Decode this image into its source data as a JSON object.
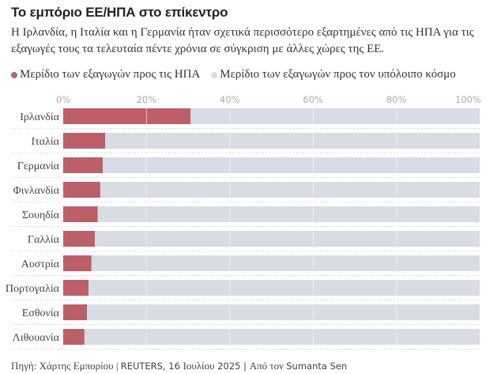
{
  "chart_data": {
    "type": "bar",
    "orientation": "horizontal",
    "stacked": true,
    "title": "Το εμπόριο ΕΕ/ΗΠΑ στο επίκεντρο",
    "subtitle": "Η Ιρλανδία, η Ιταλία και η Γερμανία ήταν σχετικά περισσότερο εξαρτημένες από τις ΗΠΑ για τις εξαγωγές τους τα τελευταία πέντε χρόνια σε σύγκριση με άλλες χώρες της ΕΕ.",
    "categories": [
      "Ιρλανδία",
      "Ιταλία",
      "Γερμανία",
      "Φινλανδία",
      "Σουηδία",
      "Γαλλία",
      "Αυστρία",
      "Πορτογαλία",
      "Εσθονία",
      "Λιθουανία"
    ],
    "series": [
      {
        "name": "Μερίδιο των εξαγωγών προς τις ΗΠΑ",
        "color": "#bc5f69",
        "values": [
          30.6,
          10.1,
          9.5,
          8.9,
          8.3,
          7.6,
          6.8,
          6.1,
          5.7,
          5.1
        ]
      },
      {
        "name": "Μερίδιο των εξαγωγών προς τον υπόλοιπο κόσμο",
        "color": "#d7dce5",
        "values": [
          69.4,
          89.9,
          90.5,
          91.1,
          91.7,
          92.4,
          93.2,
          93.9,
          94.3,
          94.9
        ]
      }
    ],
    "xlim": [
      0,
      100
    ],
    "xticks": [
      0,
      20,
      40,
      60,
      80,
      100
    ],
    "xtick_labels": [
      "0%",
      "20%",
      "40%",
      "60%",
      "80%",
      "100%"
    ],
    "xlabel": "",
    "ylabel": "",
    "grid": true,
    "legend_position": "top-left"
  },
  "source": {
    "prefix": "Πηγή: Χάρτης Εμπορίου | ",
    "agency": "REUTERS, 16 ",
    "month": "Ιουλίου",
    "year": " 2025 | ",
    "author_prefix": "Από τον ",
    "author": "Sumanta Sen"
  }
}
